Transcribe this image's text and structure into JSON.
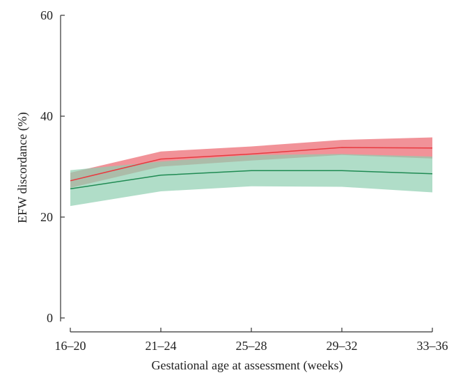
{
  "chart_data": {
    "type": "area",
    "categories": [
      "16–20",
      "21–24",
      "25–28",
      "29–32",
      "33–36"
    ],
    "xlabel": "Gestational age at assessment (weeks)",
    "ylabel": "EFW discordance (%)",
    "ylim": [
      0,
      60
    ],
    "yticks": [
      0,
      20,
      40,
      60
    ],
    "grid": false,
    "series": [
      {
        "color": "#e8393f",
        "fill_color": "#ef7f86",
        "values": [
          27.2,
          31.5,
          32.5,
          33.8,
          33.7
        ],
        "lower": [
          25.8,
          30.0,
          31.2,
          32.3,
          31.6
        ],
        "upper": [
          28.8,
          33.0,
          34.0,
          35.3,
          35.8
        ]
      },
      {
        "color": "#1e8a52",
        "fill_color": "#8fcfb0",
        "values": [
          25.6,
          28.3,
          29.2,
          29.2,
          28.6
        ],
        "lower": [
          22.2,
          25.1,
          26.1,
          26.0,
          24.9
        ],
        "upper": [
          29.3,
          31.0,
          32.3,
          32.5,
          32.0
        ]
      }
    ]
  }
}
